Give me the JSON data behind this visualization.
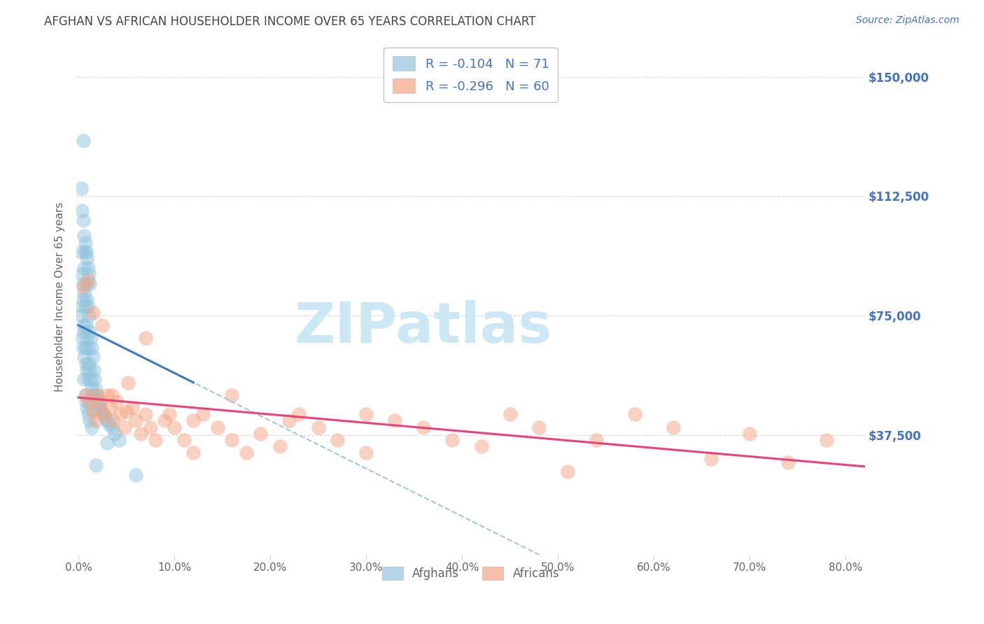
{
  "title": "AFGHAN VS AFRICAN HOUSEHOLDER INCOME OVER 65 YEARS CORRELATION CHART",
  "source": "Source: ZipAtlas.com",
  "ylabel": "Householder Income Over 65 years",
  "ytick_labels": [
    "$37,500",
    "$75,000",
    "$112,500",
    "$150,000"
  ],
  "ytick_values": [
    37500,
    75000,
    112500,
    150000
  ],
  "ymin": 0,
  "ymax": 162000,
  "xmin": -0.002,
  "xmax": 0.82,
  "afghan_color": "#92c5de",
  "african_color": "#f4a582",
  "afghan_line_color": "#3a7bbf",
  "african_line_color": "#e8447a",
  "dashed_line_color": "#92c5de",
  "legend_afghan_R": "-0.104",
  "legend_afghan_N": "71",
  "legend_african_R": "-0.296",
  "legend_african_N": "60",
  "watermark": "ZIPatlas",
  "watermark_color": "#cde8f5",
  "grid_color": "#d0d0d0",
  "title_color": "#444444",
  "axis_label_color": "#666666",
  "ytick_color": "#4472c4",
  "source_color": "#4472c4",
  "xtick_color": "#666666",
  "afghan_x": [
    0.003,
    0.003,
    0.004,
    0.004,
    0.004,
    0.005,
    0.005,
    0.005,
    0.005,
    0.006,
    0.006,
    0.006,
    0.006,
    0.007,
    0.007,
    0.007,
    0.008,
    0.008,
    0.008,
    0.009,
    0.009,
    0.009,
    0.01,
    0.01,
    0.01,
    0.011,
    0.011,
    0.012,
    0.012,
    0.013,
    0.013,
    0.014,
    0.014,
    0.015,
    0.015,
    0.016,
    0.017,
    0.018,
    0.019,
    0.02,
    0.021,
    0.022,
    0.024,
    0.026,
    0.028,
    0.03,
    0.032,
    0.035,
    0.038,
    0.042,
    0.003,
    0.004,
    0.005,
    0.006,
    0.007,
    0.008,
    0.009,
    0.01,
    0.011,
    0.012,
    0.005,
    0.006,
    0.007,
    0.008,
    0.009,
    0.01,
    0.012,
    0.014,
    0.018,
    0.03,
    0.06
  ],
  "afghan_y": [
    75000,
    95000,
    88000,
    78000,
    68000,
    85000,
    80000,
    72000,
    65000,
    90000,
    82000,
    70000,
    62000,
    95000,
    78000,
    65000,
    85000,
    72000,
    60000,
    80000,
    68000,
    58000,
    78000,
    65000,
    55000,
    75000,
    60000,
    70000,
    58000,
    68000,
    55000,
    65000,
    52000,
    62000,
    50000,
    58000,
    55000,
    52000,
    50000,
    48000,
    47000,
    46000,
    45000,
    44000,
    43000,
    42000,
    41000,
    40000,
    38000,
    36000,
    115000,
    108000,
    105000,
    100000,
    98000,
    95000,
    93000,
    90000,
    88000,
    85000,
    130000,
    55000,
    50000,
    48000,
    46000,
    44000,
    42000,
    40000,
    28000,
    35000,
    25000
  ],
  "african_x": [
    0.005,
    0.008,
    0.01,
    0.012,
    0.015,
    0.018,
    0.02,
    0.023,
    0.026,
    0.03,
    0.033,
    0.036,
    0.04,
    0.044,
    0.048,
    0.052,
    0.056,
    0.06,
    0.065,
    0.07,
    0.075,
    0.08,
    0.09,
    0.1,
    0.11,
    0.12,
    0.13,
    0.145,
    0.16,
    0.175,
    0.19,
    0.21,
    0.23,
    0.25,
    0.27,
    0.3,
    0.33,
    0.36,
    0.39,
    0.42,
    0.45,
    0.48,
    0.51,
    0.54,
    0.58,
    0.62,
    0.66,
    0.7,
    0.74,
    0.78,
    0.015,
    0.025,
    0.035,
    0.05,
    0.07,
    0.095,
    0.12,
    0.16,
    0.22,
    0.3
  ],
  "african_y": [
    84000,
    50000,
    86000,
    48000,
    45000,
    42000,
    50000,
    48000,
    44000,
    50000,
    46000,
    42000,
    48000,
    44000,
    40000,
    54000,
    46000,
    42000,
    38000,
    44000,
    40000,
    36000,
    42000,
    40000,
    36000,
    32000,
    44000,
    40000,
    36000,
    32000,
    38000,
    34000,
    44000,
    40000,
    36000,
    32000,
    42000,
    40000,
    36000,
    34000,
    44000,
    40000,
    26000,
    36000,
    44000,
    40000,
    30000,
    38000,
    29000,
    36000,
    76000,
    72000,
    50000,
    45000,
    68000,
    44000,
    42000,
    50000,
    42000,
    44000
  ]
}
